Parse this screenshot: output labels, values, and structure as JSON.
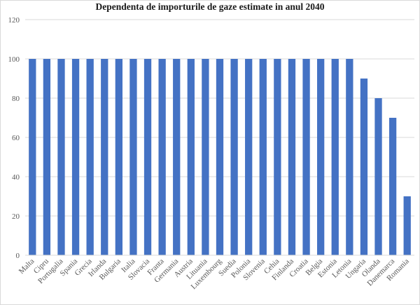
{
  "chart_data": {
    "type": "bar",
    "title": "Dependenta de importurile de gaze estimate in anul 2040",
    "xlabel": "",
    "ylabel": "",
    "ylim": [
      0,
      120
    ],
    "yticks": [
      0,
      20,
      40,
      60,
      80,
      100,
      120
    ],
    "grid": true,
    "legend": "none",
    "bar_color": "#4472c4",
    "grid_color": "#d9d9d9",
    "categories": [
      "Malta",
      "Cipru",
      "Portugalia",
      "Spania",
      "Grecia",
      "Irlanda",
      "Bulgaria",
      "Italia",
      "Slovacia",
      "Franta",
      "Germania",
      "Austria",
      "Lituania",
      "Luxembourg",
      "Suedia",
      "Polonia",
      "Slovenia",
      "Cehia",
      "Finlanda",
      "Croatia",
      "Belgia",
      "Estonia",
      "Letonia",
      "Ungaria",
      "Olanda",
      "Danemarca",
      "Romania"
    ],
    "values": [
      100,
      100,
      100,
      100,
      100,
      100,
      100,
      100,
      100,
      100,
      100,
      100,
      100,
      100,
      100,
      100,
      100,
      100,
      100,
      100,
      100,
      100,
      100,
      90,
      80,
      70,
      30
    ]
  }
}
